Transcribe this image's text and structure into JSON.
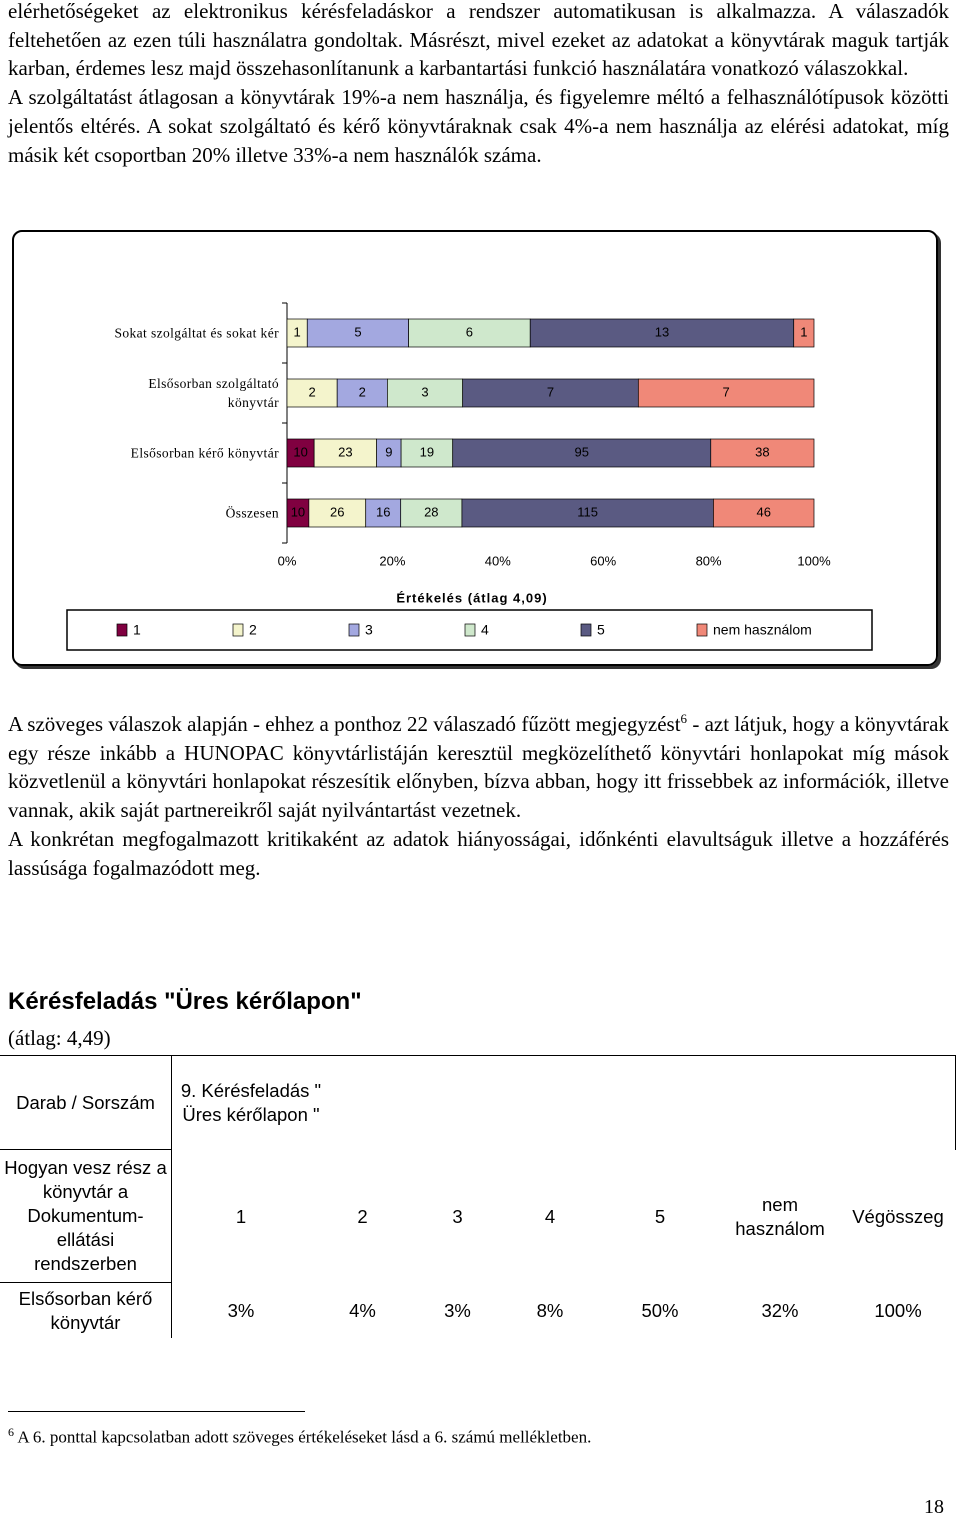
{
  "body": {
    "paragraphs": [
      "elérhetőségeket az elektronikus kérésfeladáskor a rendszer automatikusan is alkalmazza. A válaszadók feltehetően az ezen túli használatra gondoltak. Másrészt, mivel ezeket az adatokat a könyvtárak maguk tartják karban, érdemes lesz majd összehasonlítanunk a karbantartási funkció használatára vonatkozó válaszokkal.",
      "A szolgáltatást átlagosan a könyvtárak 19%-a nem használja, és figyelemre méltó a felhasználótípusok közötti jelentős eltérés. A sokat szolgáltató és kérő könyvtáraknak csak 4%-a nem használja az elérési adatokat, míg másik két csoportban 20% illetve 33%-a nem használók száma.",
      {
        "before": "A szöveges válaszok alapján - ehhez a ponthoz 22 válaszadó fűzött megjegyzést",
        "footnote_ref": "6",
        "after": " - azt látjuk, hogy a könyvtárak egy része inkább a HUNOPAC könyvtárlistáján keresztül megközelíthető könyvtári honlapokat míg mások közvetlenül a könyvtári honlapokat részesítik előnyben, bízva abban, hogy itt frissebbek az információk, illetve vannak, akik saját partnereikről saját nyilvántartást vezetnek."
      },
      "A konkrétan megfogalmazott kritikaként az adatok hiányosságai, időnkénti elavultságuk illetve a hozzáférés lassúsága fogalmazódott meg."
    ]
  },
  "chart_data": {
    "type": "bar",
    "orientation": "horizontal",
    "stacking": "percent",
    "categories": [
      "Sokat szolgáltat és sokat kér",
      "Elsősorban szolgáltató könyvtár",
      "Elsősorban kérő könyvtár",
      "Összesen"
    ],
    "series": [
      {
        "name": "1",
        "color": "#800040",
        "values": [
          null,
          null,
          10,
          10
        ]
      },
      {
        "name": "2",
        "color": "#f4f4cc",
        "values": [
          1,
          2,
          23,
          26
        ]
      },
      {
        "name": "3",
        "color": "#a3a8e0",
        "values": [
          5,
          2,
          9,
          16
        ]
      },
      {
        "name": "4",
        "color": "#cfe8cc",
        "values": [
          6,
          3,
          19,
          28
        ]
      },
      {
        "name": "5",
        "color": "#5a5a82",
        "values": [
          13,
          7,
          95,
          115
        ]
      },
      {
        "name": "nem használom",
        "color": "#f08878",
        "values": [
          1,
          7,
          38,
          46
        ]
      }
    ],
    "xlim": [
      0,
      100
    ],
    "xticks": [
      {
        "value": 0,
        "label": "0%"
      },
      {
        "value": 20,
        "label": "20%"
      },
      {
        "value": 40,
        "label": "40%"
      },
      {
        "value": 60,
        "label": "60%"
      },
      {
        "value": 80,
        "label": "80%"
      },
      {
        "value": 100,
        "label": "100%"
      }
    ],
    "xlabel": "Értékelés (átlag 4,09)",
    "legend": "bottom"
  },
  "section": {
    "title": "Kérésfeladás \"Üres kérőlapon\"",
    "subtitle": "(átlag: 4,49)"
  },
  "table": {
    "rows": [
      [
        "Darab / Sorszám",
        "9. Kérésfeladás \" Üres kérőlapon \""
      ],
      [
        "Hogyan vesz rész a könyvtár a Dokumentum-ellátási rendszerben",
        "1",
        "2",
        "3",
        "4",
        "5",
        "nem használom",
        "Végösszeg"
      ],
      [
        "Elsősorban kérő könyvtár",
        "3%",
        "4%",
        "3%",
        "8%",
        "50%",
        "32%",
        "100%"
      ]
    ]
  },
  "footnote": {
    "number": "6",
    "text": "A 6. ponttal kapcsolatban adott szöveges értékeléseket lásd a 6. számú mellékletben."
  },
  "page_number": "18"
}
